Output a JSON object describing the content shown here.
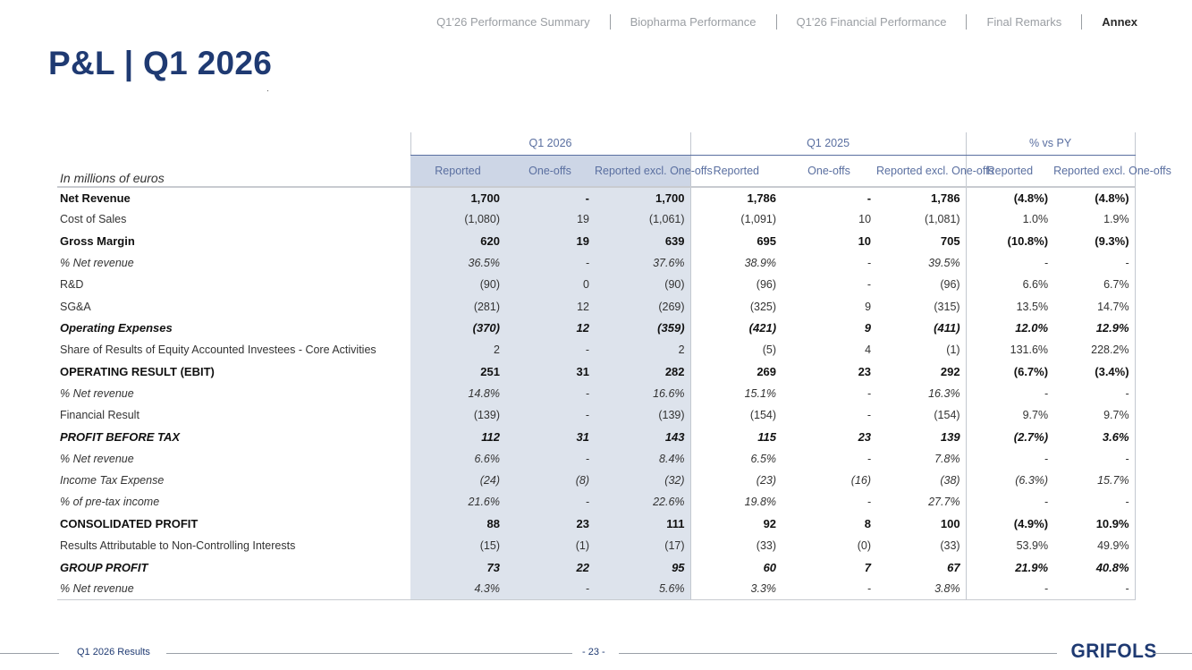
{
  "nav": {
    "items": [
      "Q1'26 Performance Summary",
      "Biopharma Performance",
      "Q1'26 Financial Performance",
      "Final Remarks"
    ],
    "active": "Annex"
  },
  "page_title": "P&L | Q1 2026",
  "table": {
    "units_label": "In millions of euros",
    "groups": [
      "Q1 2026",
      "Q1 2025",
      "% vs PY"
    ],
    "subheaders": [
      "Reported",
      "One-offs",
      "Reported excl. One-offs",
      "Reported",
      "One-offs",
      "Reported excl. One-offs",
      "Reported",
      "Reported excl. One-offs"
    ],
    "rows": [
      {
        "label": "Net Revenue",
        "style": "bold",
        "values": [
          "1,700",
          "-",
          "1,700",
          "1,786",
          "-",
          "1,786",
          "(4.8%)",
          "(4.8%)"
        ]
      },
      {
        "label": "Cost of Sales",
        "style": "plain",
        "values": [
          "(1,080)",
          "19",
          "(1,061)",
          "(1,091)",
          "10",
          "(1,081)",
          "1.0%",
          "1.9%"
        ]
      },
      {
        "label": "Gross Margin",
        "style": "bold",
        "values": [
          "620",
          "19",
          "639",
          "695",
          "10",
          "705",
          "(10.8%)",
          "(9.3%)"
        ]
      },
      {
        "label": "% Net revenue",
        "style": "italic-indent",
        "values": [
          "36.5%",
          "-",
          "37.6%",
          "38.9%",
          "-",
          "39.5%",
          "-",
          "-"
        ]
      },
      {
        "label": "R&D",
        "style": "plain",
        "values": [
          "(90)",
          "0",
          "(90)",
          "(96)",
          "-",
          "(96)",
          "6.6%",
          "6.7%"
        ]
      },
      {
        "label": "SG&A",
        "style": "plain",
        "values": [
          "(281)",
          "12",
          "(269)",
          "(325)",
          "9",
          "(315)",
          "13.5%",
          "14.7%"
        ]
      },
      {
        "label": "Operating Expenses",
        "style": "bolditalic",
        "values": [
          "(370)",
          "12",
          "(359)",
          "(421)",
          "9",
          "(411)",
          "12.0%",
          "12.9%"
        ]
      },
      {
        "label": "Share of Results of Equity Accounted Investees - Core Activities",
        "style": "plain",
        "values": [
          "2",
          "-",
          "2",
          "(5)",
          "4",
          "(1)",
          "131.6%",
          "228.2%"
        ]
      },
      {
        "label": "OPERATING RESULT (EBIT)",
        "style": "bold",
        "values": [
          "251",
          "31",
          "282",
          "269",
          "23",
          "292",
          "(6.7%)",
          "(3.4%)"
        ]
      },
      {
        "label": "% Net revenue",
        "style": "italic-indent",
        "values": [
          "14.8%",
          "-",
          "16.6%",
          "15.1%",
          "-",
          "16.3%",
          "-",
          "-"
        ]
      },
      {
        "label": "Financial Result",
        "style": "plain",
        "values": [
          "(139)",
          "-",
          "(139)",
          "(154)",
          "-",
          "(154)",
          "9.7%",
          "9.7%"
        ]
      },
      {
        "label": "PROFIT BEFORE TAX",
        "style": "bolditalic",
        "values": [
          "112",
          "31",
          "143",
          "115",
          "23",
          "139",
          "(2.7%)",
          "3.6%"
        ]
      },
      {
        "label": "% Net revenue",
        "style": "italic-indent",
        "values": [
          "6.6%",
          "-",
          "8.4%",
          "6.5%",
          "-",
          "7.8%",
          "-",
          "-"
        ]
      },
      {
        "label": "Income Tax Expense",
        "style": "italic",
        "values": [
          "(24)",
          "(8)",
          "(32)",
          "(23)",
          "(16)",
          "(38)",
          "(6.3%)",
          "15.7%"
        ]
      },
      {
        "label": "% of pre-tax income",
        "style": "italic-indent",
        "values": [
          "21.6%",
          "-",
          "22.6%",
          "19.8%",
          "-",
          "27.7%",
          "-",
          "-"
        ]
      },
      {
        "label": "CONSOLIDATED PROFIT",
        "style": "bold",
        "values": [
          "88",
          "23",
          "111",
          "92",
          "8",
          "100",
          "(4.9%)",
          "10.9%"
        ]
      },
      {
        "label": "Results Attributable to Non-Controlling Interests",
        "style": "plain",
        "values": [
          "(15)",
          "(1)",
          "(17)",
          "(33)",
          "(0)",
          "(33)",
          "53.9%",
          "49.9%"
        ]
      },
      {
        "label": "GROUP PROFIT",
        "style": "bolditalic",
        "values": [
          "73",
          "22",
          "95",
          "60",
          "7",
          "67",
          "21.9%",
          "40.8%"
        ]
      },
      {
        "label": "% Net revenue",
        "style": "italic-indent",
        "values": [
          "4.3%",
          "-",
          "5.6%",
          "3.3%",
          "-",
          "3.8%",
          "-",
          "-"
        ]
      }
    ]
  },
  "footer": {
    "left": "Q1 2026 Results",
    "page": "- 23 -",
    "logo": "GRIFOLS"
  }
}
